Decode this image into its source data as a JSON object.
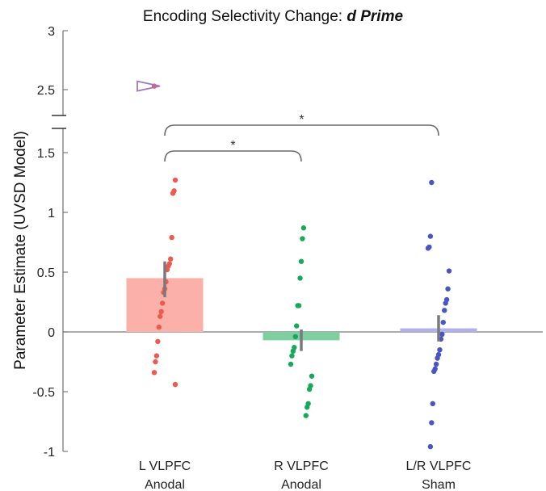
{
  "chart_data": {
    "type": "bar",
    "title_prefix": "Encoding Selectivity Change: ",
    "title_emphasis": "d Prime",
    "ylabel": "Parameter Estimate (UVSD Model)",
    "xlabel": "",
    "ylim": [
      -1,
      3
    ],
    "axis_break": [
      1.75,
      2.35
    ],
    "yticks": [
      -1,
      -0.5,
      0,
      0.5,
      1,
      1.5,
      2.5,
      3
    ],
    "ytick_labels": [
      "-1",
      "-0.5",
      "0",
      "0.5",
      "1",
      "1.5",
      "2.5",
      "3"
    ],
    "categories": [
      {
        "line1": "L VLPFC",
        "line2": "Anodal"
      },
      {
        "line1": "R VLPFC",
        "line2": "Anodal"
      },
      {
        "line1": "L/R VLPFC",
        "line2": "Sham"
      }
    ],
    "values": [
      0.45,
      -0.07,
      0.03
    ],
    "error": [
      [
        0.29,
        0.59
      ],
      [
        -0.16,
        0.02
      ],
      [
        -0.08,
        0.14
      ]
    ],
    "colors": {
      "bars": [
        "#fcb0aa",
        "#7dcfa0",
        "#b0b0ea"
      ],
      "points": [
        "#ee5a50",
        "#18a85a",
        "#4a55c4"
      ],
      "error_bar": "#7a7a7a",
      "axis": "#7a7a7a",
      "bracket": "#6a6a6a",
      "outlier_marker": "#a078c0"
    },
    "points": [
      [
        2.53,
        1.27,
        1.18,
        1.16,
        0.79,
        0.61,
        0.57,
        0.55,
        0.52,
        0.42,
        0.36,
        0.33,
        0.24,
        0.17,
        0.13,
        0.04,
        -0.08,
        -0.2,
        -0.25,
        -0.34,
        -0.44
      ],
      [
        0.87,
        0.78,
        0.59,
        0.45,
        0.22,
        0.22,
        0.05,
        -0.04,
        -0.13,
        -0.16,
        -0.2,
        -0.27,
        -0.37,
        -0.45,
        -0.48,
        -0.6,
        -0.63,
        -0.7
      ],
      [
        1.25,
        0.8,
        0.71,
        0.7,
        0.51,
        0.36,
        0.27,
        0.24,
        0.18,
        0.08,
        -0.02,
        -0.06,
        -0.15,
        -0.19,
        -0.22,
        -0.27,
        -0.31,
        -0.33,
        -0.6,
        -0.76,
        -0.96
      ]
    ],
    "outlier_marker": {
      "group": 0,
      "value": 2.53,
      "shape": "open triangle pointing right"
    },
    "significance": [
      {
        "from": 0,
        "to": 1,
        "label": "*"
      },
      {
        "from": 0,
        "to": 2,
        "label": "*"
      }
    ]
  }
}
